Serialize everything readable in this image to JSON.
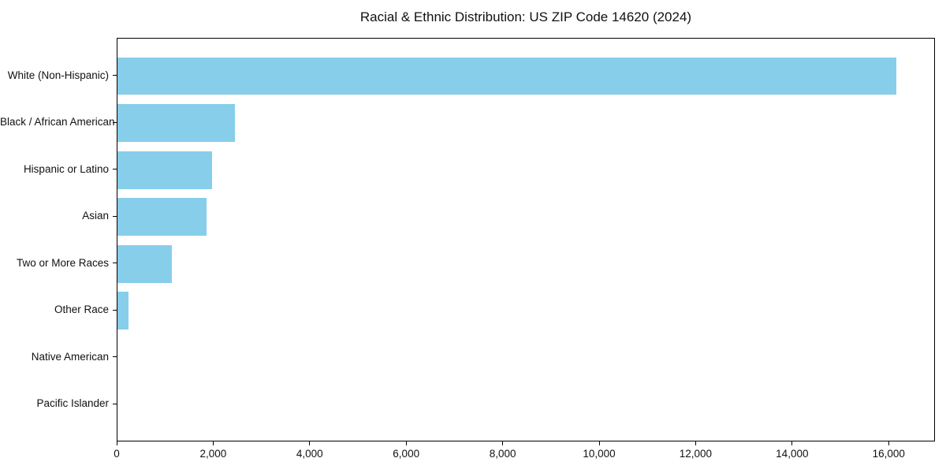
{
  "chart_data": {
    "type": "bar",
    "orientation": "horizontal",
    "title": "Racial & Ethnic Distribution: US ZIP Code 14620 (2024)",
    "categories": [
      "White (Non-Hispanic)",
      "Black / African American",
      "Hispanic or Latino",
      "Asian",
      "Two or More Races",
      "Other Race",
      "Native American",
      "Pacific Islander"
    ],
    "values": [
      16150,
      2430,
      1960,
      1850,
      1130,
      230,
      0,
      0
    ],
    "xlabel": "",
    "ylabel": "",
    "xlim": [
      0,
      16960
    ],
    "xticks": {
      "values": [
        0,
        2000,
        4000,
        6000,
        8000,
        10000,
        12000,
        14000,
        16000
      ],
      "labels": [
        "0",
        "2,000",
        "4,000",
        "6,000",
        "8,000",
        "10,000",
        "12,000",
        "14,000",
        "16,000"
      ]
    },
    "bar_color": "#87CEEB",
    "frame_color": "#000000",
    "grid": false,
    "legend": null
  }
}
